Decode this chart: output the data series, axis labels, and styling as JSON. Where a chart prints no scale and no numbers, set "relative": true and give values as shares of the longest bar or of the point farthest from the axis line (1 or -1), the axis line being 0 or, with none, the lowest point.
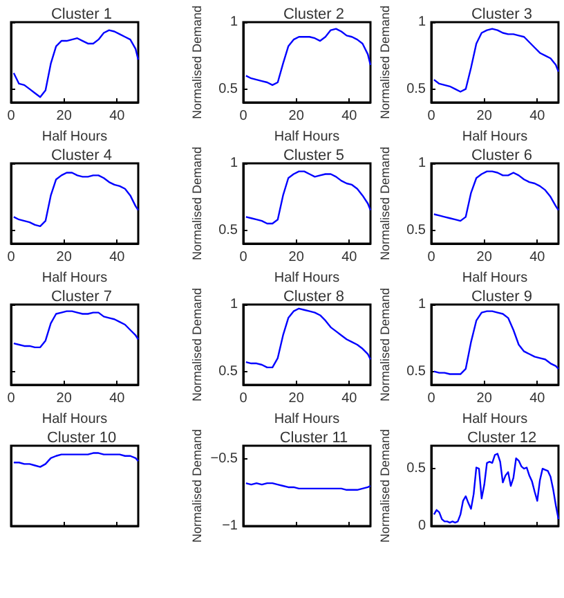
{
  "chart_data": [
    {
      "type": "line",
      "title": "Cluster 1",
      "xlabel": "Half Hours",
      "x": [
        1,
        3,
        5,
        7,
        9,
        11,
        13,
        15,
        17,
        19,
        21,
        23,
        25,
        27,
        29,
        31,
        33,
        35,
        37,
        39,
        41,
        43,
        45,
        47,
        48
      ],
      "values": [
        0.62,
        0.54,
        0.53,
        0.5,
        0.47,
        0.44,
        0.49,
        0.69,
        0.82,
        0.86,
        0.86,
        0.87,
        0.88,
        0.86,
        0.84,
        0.84,
        0.87,
        0.92,
        0.94,
        0.93,
        0.91,
        0.89,
        0.87,
        0.8,
        0.72
      ],
      "color": "#0000ff",
      "marker": "none",
      "xlim": [
        0,
        48
      ],
      "xticks": [
        0,
        20,
        40
      ],
      "ylim": [
        0.4,
        1
      ],
      "yticks": [
        0.5,
        1
      ],
      "tick_labels": "x"
    },
    {
      "type": "line",
      "title": "Cluster 2",
      "xlabel": "Half Hours",
      "ylabel": "Normalised Demand",
      "x": [
        1,
        3,
        5,
        7,
        9,
        11,
        13,
        15,
        17,
        19,
        21,
        23,
        25,
        27,
        29,
        31,
        33,
        35,
        37,
        39,
        41,
        43,
        45,
        47,
        48
      ],
      "values": [
        0.6,
        0.58,
        0.57,
        0.56,
        0.55,
        0.53,
        0.55,
        0.69,
        0.82,
        0.87,
        0.89,
        0.89,
        0.89,
        0.88,
        0.86,
        0.89,
        0.94,
        0.95,
        0.93,
        0.9,
        0.89,
        0.87,
        0.84,
        0.76,
        0.68
      ],
      "color": "#0000ff",
      "marker": "none",
      "xlim": [
        0,
        48
      ],
      "xticks": [
        0,
        20,
        40
      ],
      "ylim": [
        0.4,
        1
      ],
      "yticks": [
        0.5,
        1
      ]
    },
    {
      "type": "line",
      "title": "Cluster 3",
      "xlabel": "Half Hours",
      "ylabel": "Normalised Demand",
      "x": [
        1,
        3,
        5,
        7,
        9,
        11,
        13,
        15,
        17,
        19,
        21,
        23,
        25,
        27,
        29,
        31,
        33,
        35,
        37,
        39,
        41,
        43,
        45,
        47,
        48
      ],
      "values": [
        0.57,
        0.54,
        0.53,
        0.52,
        0.5,
        0.48,
        0.5,
        0.66,
        0.84,
        0.92,
        0.94,
        0.95,
        0.94,
        0.92,
        0.91,
        0.91,
        0.9,
        0.89,
        0.85,
        0.81,
        0.77,
        0.75,
        0.73,
        0.68,
        0.63
      ],
      "color": "#0000ff",
      "marker": "none",
      "xlim": [
        0,
        48
      ],
      "xticks": [
        0,
        20,
        40
      ],
      "ylim": [
        0.4,
        1
      ],
      "yticks": [
        0.5,
        1
      ]
    },
    {
      "type": "line",
      "title": "Cluster 4",
      "xlabel": "Half Hours",
      "x": [
        1,
        3,
        5,
        7,
        9,
        11,
        13,
        15,
        17,
        19,
        21,
        23,
        25,
        27,
        29,
        31,
        33,
        35,
        37,
        39,
        41,
        43,
        45,
        47,
        48
      ],
      "values": [
        0.6,
        0.58,
        0.57,
        0.56,
        0.54,
        0.53,
        0.57,
        0.76,
        0.88,
        0.91,
        0.93,
        0.93,
        0.91,
        0.9,
        0.9,
        0.91,
        0.91,
        0.89,
        0.86,
        0.84,
        0.83,
        0.81,
        0.76,
        0.68,
        0.65
      ],
      "color": "#0000ff",
      "marker": "none",
      "xlim": [
        0,
        48
      ],
      "xticks": [
        0,
        20,
        40
      ],
      "ylim": [
        0.4,
        1
      ],
      "yticks": [
        0.5,
        1
      ],
      "tick_labels": "x"
    },
    {
      "type": "line",
      "title": "Cluster 5",
      "xlabel": "Half Hours",
      "ylabel": "Normalised Demand",
      "x": [
        1,
        3,
        5,
        7,
        9,
        11,
        13,
        15,
        17,
        19,
        21,
        23,
        25,
        27,
        29,
        31,
        33,
        35,
        37,
        39,
        41,
        43,
        45,
        47,
        48
      ],
      "values": [
        0.6,
        0.59,
        0.58,
        0.57,
        0.55,
        0.55,
        0.58,
        0.76,
        0.89,
        0.92,
        0.94,
        0.94,
        0.92,
        0.9,
        0.91,
        0.92,
        0.92,
        0.9,
        0.87,
        0.85,
        0.84,
        0.81,
        0.76,
        0.7,
        0.65
      ],
      "color": "#0000ff",
      "marker": "none",
      "xlim": [
        0,
        48
      ],
      "xticks": [
        0,
        20,
        40
      ],
      "ylim": [
        0.4,
        1
      ],
      "yticks": [
        0.5,
        1
      ]
    },
    {
      "type": "line",
      "title": "Cluster 6",
      "xlabel": "Half Hours",
      "ylabel": "Normalised Demand",
      "x": [
        1,
        3,
        5,
        7,
        9,
        11,
        13,
        15,
        17,
        19,
        21,
        23,
        25,
        27,
        29,
        31,
        33,
        35,
        37,
        39,
        41,
        43,
        45,
        47,
        48
      ],
      "values": [
        0.62,
        0.61,
        0.6,
        0.59,
        0.58,
        0.57,
        0.6,
        0.78,
        0.89,
        0.92,
        0.94,
        0.94,
        0.93,
        0.91,
        0.91,
        0.93,
        0.91,
        0.88,
        0.86,
        0.85,
        0.83,
        0.8,
        0.75,
        0.68,
        0.65
      ],
      "color": "#0000ff",
      "marker": "none",
      "xlim": [
        0,
        48
      ],
      "xticks": [
        0,
        20,
        40
      ],
      "ylim": [
        0.4,
        1
      ],
      "yticks": [
        0.5,
        1
      ]
    },
    {
      "type": "line",
      "title": "Cluster 7",
      "xlabel": "Half Hours",
      "x": [
        1,
        3,
        5,
        7,
        9,
        11,
        13,
        15,
        17,
        19,
        21,
        23,
        25,
        27,
        29,
        31,
        33,
        35,
        37,
        39,
        41,
        43,
        45,
        47,
        48
      ],
      "values": [
        0.71,
        0.7,
        0.69,
        0.69,
        0.68,
        0.68,
        0.73,
        0.86,
        0.93,
        0.94,
        0.95,
        0.95,
        0.94,
        0.93,
        0.93,
        0.94,
        0.94,
        0.91,
        0.9,
        0.89,
        0.87,
        0.85,
        0.81,
        0.77,
        0.74
      ],
      "color": "#0000ff",
      "marker": "none",
      "xlim": [
        0,
        48
      ],
      "xticks": [
        0,
        20,
        40
      ],
      "ylim": [
        0.4,
        1
      ],
      "yticks": [
        0.5,
        1
      ],
      "tick_labels": "x"
    },
    {
      "type": "line",
      "title": "Cluster 8",
      "xlabel": "Half Hours",
      "ylabel": "Normalised Demand",
      "x": [
        1,
        3,
        5,
        7,
        9,
        11,
        13,
        15,
        17,
        19,
        21,
        23,
        25,
        27,
        29,
        31,
        33,
        35,
        37,
        39,
        41,
        43,
        45,
        47,
        48
      ],
      "values": [
        0.57,
        0.56,
        0.56,
        0.55,
        0.53,
        0.53,
        0.6,
        0.77,
        0.9,
        0.95,
        0.97,
        0.96,
        0.95,
        0.94,
        0.92,
        0.88,
        0.83,
        0.8,
        0.77,
        0.74,
        0.72,
        0.7,
        0.67,
        0.63,
        0.59
      ],
      "color": "#0000ff",
      "marker": "none",
      "xlim": [
        0,
        48
      ],
      "xticks": [
        0,
        20,
        40
      ],
      "ylim": [
        0.4,
        1
      ],
      "yticks": [
        0.5,
        1
      ]
    },
    {
      "type": "line",
      "title": "Cluster 9",
      "xlabel": "Half Hours",
      "ylabel": "Normalised Demand",
      "x": [
        1,
        3,
        5,
        7,
        9,
        11,
        13,
        15,
        17,
        19,
        21,
        23,
        25,
        27,
        29,
        31,
        33,
        35,
        37,
        39,
        41,
        43,
        45,
        47,
        48
      ],
      "values": [
        0.5,
        0.49,
        0.49,
        0.48,
        0.48,
        0.48,
        0.52,
        0.72,
        0.88,
        0.94,
        0.95,
        0.95,
        0.94,
        0.93,
        0.9,
        0.81,
        0.7,
        0.65,
        0.63,
        0.61,
        0.6,
        0.59,
        0.56,
        0.54,
        0.52
      ],
      "color": "#0000ff",
      "marker": "none",
      "xlim": [
        0,
        48
      ],
      "xticks": [
        0,
        20,
        40
      ],
      "ylim": [
        0.4,
        1
      ],
      "yticks": [
        0.5,
        1
      ]
    },
    {
      "type": "line",
      "title": "Cluster 10",
      "x": [
        1,
        3,
        5,
        7,
        9,
        11,
        13,
        15,
        17,
        19,
        21,
        23,
        25,
        27,
        29,
        31,
        33,
        35,
        37,
        39,
        41,
        43,
        45,
        47,
        48
      ],
      "values": [
        0.87,
        0.87,
        0.85,
        0.85,
        0.83,
        0.81,
        0.85,
        0.93,
        0.96,
        0.98,
        0.98,
        0.98,
        0.98,
        0.98,
        0.98,
        1,
        1,
        0.98,
        0.98,
        0.98,
        0.98,
        0.96,
        0.96,
        0.93,
        0.89
      ],
      "color": "#0000ff",
      "marker": "none",
      "xlim": [
        0,
        48
      ],
      "xticks": [
        0,
        20,
        40
      ],
      "relative": true,
      "tick_labels": false
    },
    {
      "type": "line",
      "title": "Cluster 11",
      "ylabel": "Normalised Demand",
      "x": [
        1,
        3,
        5,
        7,
        9,
        11,
        13,
        15,
        17,
        19,
        21,
        23,
        25,
        27,
        29,
        31,
        33,
        35,
        37,
        39,
        41,
        43,
        45,
        47,
        48
      ],
      "values": [
        -0.68,
        -0.69,
        -0.68,
        -0.69,
        -0.68,
        -0.68,
        -0.69,
        -0.7,
        -0.71,
        -0.71,
        -0.72,
        -0.72,
        -0.72,
        -0.72,
        -0.72,
        -0.72,
        -0.72,
        -0.72,
        -0.72,
        -0.73,
        -0.73,
        -0.73,
        -0.72,
        -0.71,
        -0.7
      ],
      "color": "#0000ff",
      "marker": "none",
      "xlim": [
        0,
        48
      ],
      "xticks": [
        0,
        20,
        40
      ],
      "ylim": [
        -1,
        -0.4
      ],
      "yticks": [
        {
          "value": -1,
          "label": "−1"
        },
        {
          "value": -0.5,
          "label": "−0.5"
        }
      ],
      "tick_labels": "y"
    },
    {
      "type": "line",
      "title": "Cluster 12",
      "ylabel": "Normalised Demand",
      "x": [
        1,
        2,
        3,
        4,
        5,
        6,
        7,
        8,
        9,
        10,
        11,
        12,
        13,
        14,
        15,
        16,
        17,
        18,
        19,
        20,
        21,
        22,
        23,
        24,
        25,
        26,
        27,
        28,
        29,
        30,
        31,
        32,
        33,
        34,
        35,
        36,
        37,
        38,
        39,
        40,
        41,
        42,
        43,
        44,
        45,
        46,
        47,
        48
      ],
      "values": [
        0.1,
        0.14,
        0.12,
        0.06,
        0.04,
        0.04,
        0.03,
        0.04,
        0.03,
        0.04,
        0.1,
        0.22,
        0.26,
        0.2,
        0.15,
        0.28,
        0.51,
        0.5,
        0.24,
        0.36,
        0.55,
        0.56,
        0.55,
        0.62,
        0.63,
        0.56,
        0.38,
        0.44,
        0.47,
        0.35,
        0.42,
        0.59,
        0.57,
        0.52,
        0.5,
        0.51,
        0.44,
        0.39,
        0.3,
        0.22,
        0.4,
        0.5,
        0.49,
        0.48,
        0.43,
        0.32,
        0.18,
        0.06
      ],
      "color": "#0000ff",
      "marker": "none",
      "xlim": [
        0,
        48
      ],
      "xticks": [
        0,
        20,
        40
      ],
      "ylim": [
        0,
        0.7
      ],
      "yticks": [
        0,
        0.5
      ],
      "tick_labels": "y"
    }
  ]
}
